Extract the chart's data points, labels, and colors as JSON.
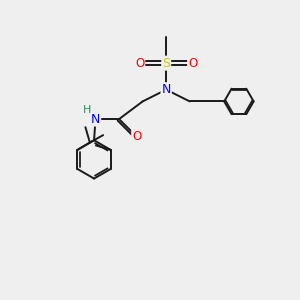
{
  "background_color": "#efefef",
  "bond_color": "#1a1a1a",
  "atom_colors": {
    "N": "#0000ff",
    "O": "#ff0000",
    "S": "#cccc00",
    "H": "#2e8b57",
    "C": "#1a1a1a"
  },
  "font_size": 8.5,
  "lw": 1.4
}
